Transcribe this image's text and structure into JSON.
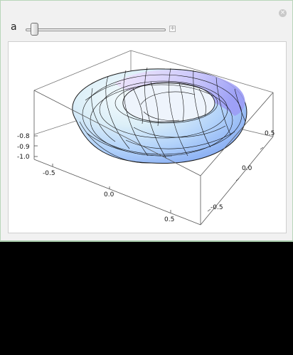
{
  "controls": {
    "variable_label": "a",
    "close_symbol": "×",
    "expand_symbol": "+",
    "slider_value_fraction": 0.04
  },
  "plot": {
    "z_ticks": [
      "-0.8",
      "-0.9",
      "-1.0"
    ],
    "x_ticks": [
      "-0.5",
      "0.0",
      "0.5"
    ],
    "y_ticks": [
      "0.5",
      "0.0",
      "-0.5"
    ],
    "colors": {
      "box": "#555555",
      "mesh": "#111111",
      "surface_light": "#eef8fb",
      "surface_blue": "#8fb6f5",
      "surface_violet": "#c6c2fb"
    }
  }
}
